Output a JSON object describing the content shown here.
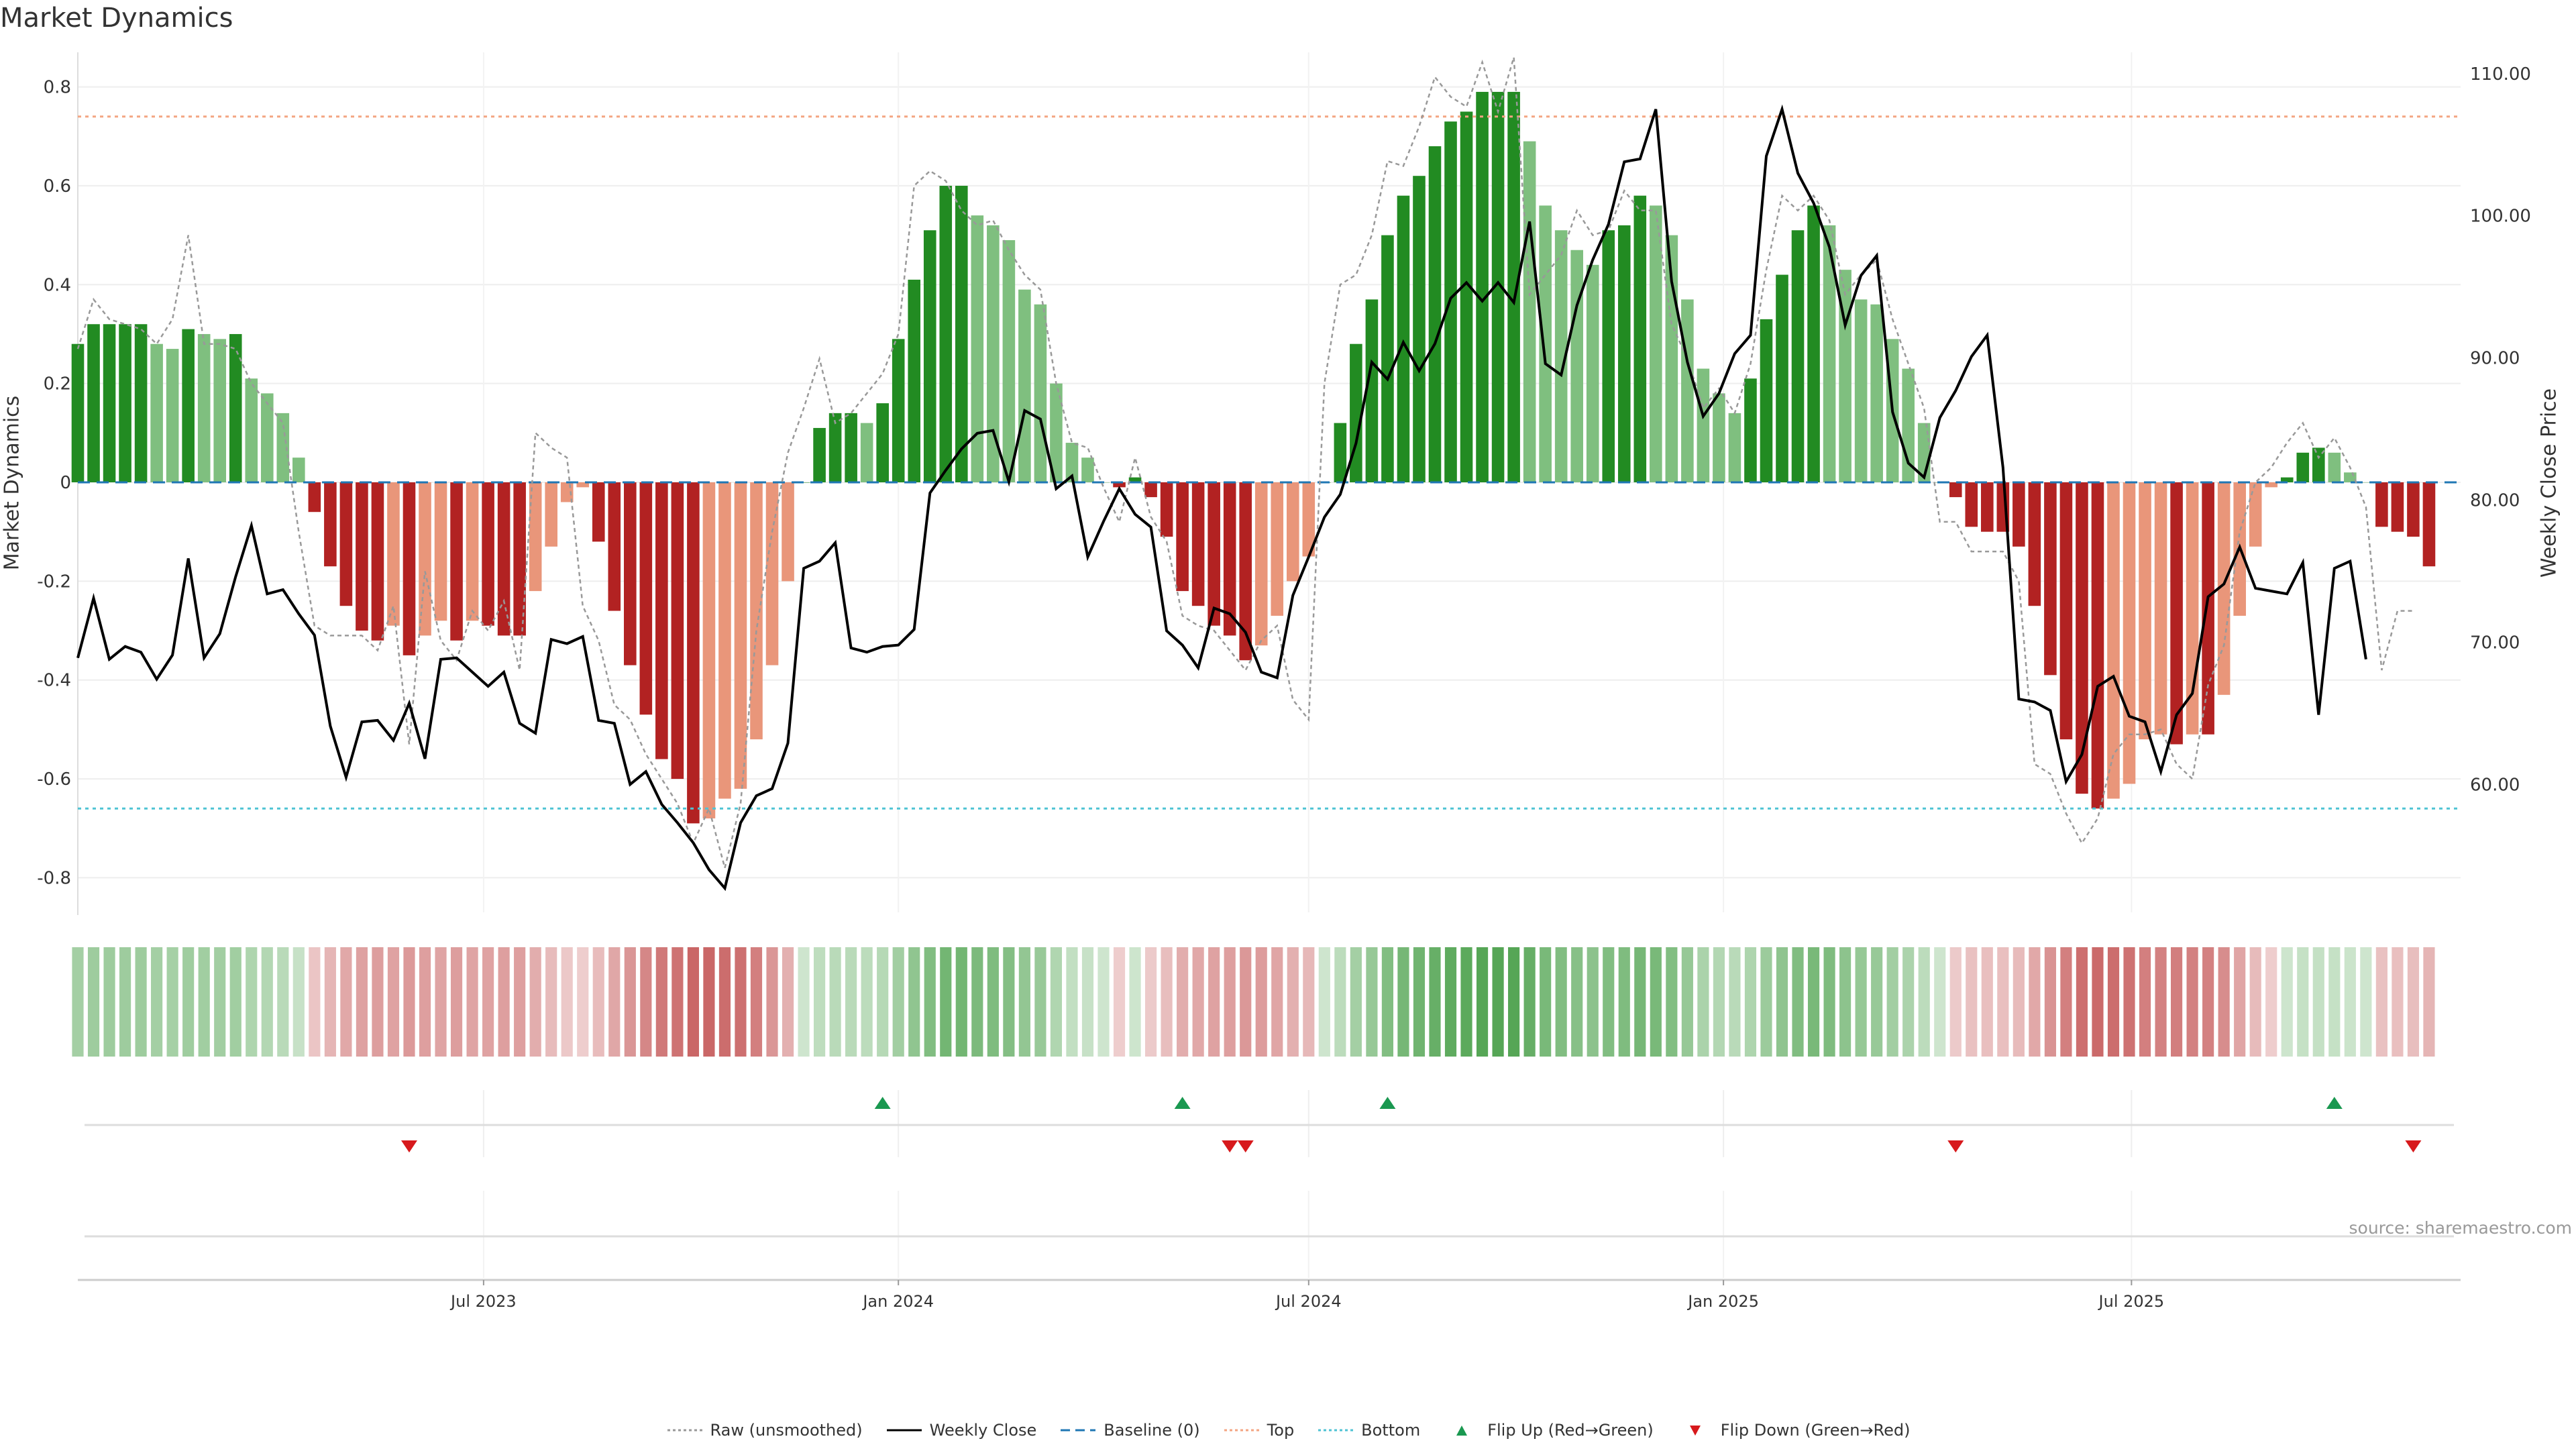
{
  "title": "Market Dynamics",
  "source": "source: sharemaestro.com",
  "colors": {
    "strong_green": "#228B22",
    "light_green": "#7FBF7F",
    "strong_red": "#B22222",
    "light_red": "#E9967A",
    "line": "#000000",
    "raw": "#999999",
    "baseline": "#1F77B4",
    "top": "#F4A582",
    "bottom": "#4FC3D4",
    "flip_up": "#1A9850",
    "flip_down": "#D7191C"
  },
  "chart_data": {
    "type": "bar",
    "title": "Market Dynamics",
    "ylabel_left": "Market Dynamics",
    "ylabel_right": "Weekly Close Price",
    "ylim_left": [
      -0.87,
      0.87
    ],
    "ylim_right": [
      51.0,
      111.5
    ],
    "yticks_left": [
      "0.8",
      "0.6",
      "0.4",
      "0.2",
      "0",
      "-0.2",
      "-0.4",
      "-0.6",
      "-0.8"
    ],
    "yticks_left_values": [
      0.8,
      0.6,
      0.4,
      0.2,
      0,
      -0.2,
      -0.4,
      -0.6,
      -0.8
    ],
    "yticks_right": [
      "110.00",
      "100.00",
      "90.00",
      "80.00",
      "70.00",
      "60.00"
    ],
    "yticks_right_values": [
      110,
      100,
      90,
      80,
      70,
      60
    ],
    "x_range": [
      "2023-01-02",
      "2025-11-24"
    ],
    "xticks": [
      "Jul 2023",
      "Jan 2024",
      "Jul 2024",
      "Jan 2025",
      "Jul 2025"
    ],
    "xtick_dates": [
      "2023-07-01",
      "2024-01-01",
      "2024-07-01",
      "2025-01-01",
      "2025-07-01"
    ],
    "top_level": 0.74,
    "bottom_level": -0.66,
    "grid": true,
    "legend_position": "bottom-center",
    "series": [
      {
        "name": "Market Dynamics",
        "kind": "bar",
        "values": [
          0.28,
          0.32,
          0.32,
          0.32,
          0.32,
          0.28,
          0.27,
          0.31,
          0.3,
          0.29,
          0.3,
          0.21,
          0.18,
          0.14,
          0.05,
          -0.06,
          -0.17,
          -0.25,
          -0.3,
          -0.32,
          -0.29,
          -0.35,
          -0.31,
          -0.28,
          -0.32,
          -0.28,
          -0.29,
          -0.31,
          -0.31,
          -0.22,
          -0.13,
          -0.04,
          -0.01,
          -0.12,
          -0.26,
          -0.37,
          -0.47,
          -0.56,
          -0.6,
          -0.69,
          -0.68,
          -0.64,
          -0.62,
          -0.52,
          -0.37,
          -0.2,
          0.0,
          0.11,
          0.14,
          0.14,
          0.12,
          0.16,
          0.29,
          0.41,
          0.51,
          0.6,
          0.6,
          0.54,
          0.52,
          0.49,
          0.39,
          0.36,
          0.2,
          0.08,
          0.05,
          0.0,
          -0.01,
          0.01,
          -0.03,
          -0.11,
          -0.22,
          -0.25,
          -0.29,
          -0.31,
          -0.36,
          -0.33,
          -0.27,
          -0.2,
          -0.15,
          0.0,
          0.12,
          0.28,
          0.37,
          0.5,
          0.58,
          0.62,
          0.68,
          0.73,
          0.75,
          0.79,
          0.79,
          0.79,
          0.69,
          0.56,
          0.51,
          0.47,
          0.44,
          0.51,
          0.52,
          0.58,
          0.56,
          0.5,
          0.37,
          0.23,
          0.18,
          0.14,
          0.21,
          0.33,
          0.42,
          0.51,
          0.56,
          0.52,
          0.43,
          0.37,
          0.36,
          0.29,
          0.23,
          0.12,
          0.0,
          -0.03,
          -0.09,
          -0.1,
          -0.1,
          -0.13,
          -0.25,
          -0.39,
          -0.52,
          -0.63,
          -0.66,
          -0.64,
          -0.61,
          -0.52,
          -0.51,
          -0.53,
          -0.51,
          -0.51,
          -0.43,
          -0.27,
          -0.13,
          -0.01,
          0.01,
          0.06,
          0.07,
          0.06,
          0.02,
          0.0,
          -0.09,
          -0.1,
          -0.11,
          -0.17
        ]
      },
      {
        "name": "Raw (unsmoothed)",
        "kind": "line-dotted",
        "values": [
          0.27,
          0.37,
          0.33,
          0.32,
          0.31,
          0.28,
          0.33,
          0.5,
          0.28,
          0.28,
          0.27,
          0.2,
          0.16,
          0.12,
          -0.1,
          -0.29,
          -0.31,
          -0.31,
          -0.31,
          -0.34,
          -0.25,
          -0.53,
          -0.18,
          -0.32,
          -0.36,
          -0.26,
          -0.3,
          -0.24,
          -0.38,
          0.1,
          0.07,
          0.05,
          -0.25,
          -0.32,
          -0.45,
          -0.48,
          -0.55,
          -0.6,
          -0.65,
          -0.73,
          -0.66,
          -0.78,
          -0.65,
          -0.3,
          -0.1,
          0.06,
          0.15,
          0.25,
          0.12,
          0.14,
          0.18,
          0.22,
          0.3,
          0.6,
          0.63,
          0.61,
          0.55,
          0.52,
          0.53,
          0.47,
          0.42,
          0.39,
          0.2,
          0.08,
          0.07,
          -0.01,
          -0.08,
          0.05,
          -0.07,
          -0.12,
          -0.27,
          -0.29,
          -0.3,
          -0.34,
          -0.38,
          -0.32,
          -0.29,
          -0.44,
          -0.48,
          0.2,
          0.4,
          0.42,
          0.5,
          0.65,
          0.64,
          0.72,
          0.82,
          0.78,
          0.76,
          0.85,
          0.75,
          0.86,
          0.38,
          0.42,
          0.46,
          0.55,
          0.5,
          0.51,
          0.59,
          0.55,
          0.55,
          0.32,
          0.25,
          0.15,
          0.19,
          0.14,
          0.24,
          0.43,
          0.58,
          0.55,
          0.58,
          0.53,
          0.38,
          0.42,
          0.45,
          0.33,
          0.24,
          0.15,
          -0.08,
          -0.08,
          -0.14,
          -0.14,
          -0.14,
          -0.2,
          -0.57,
          -0.59,
          -0.67,
          -0.73,
          -0.68,
          -0.55,
          -0.51,
          -0.51,
          -0.5,
          -0.57,
          -0.6,
          -0.41,
          -0.33,
          -0.1,
          0.0,
          0.03,
          0.08,
          0.12,
          0.05,
          0.09,
          0.03,
          -0.05,
          -0.38,
          -0.26,
          -0.26
        ]
      },
      {
        "name": "Weekly Close",
        "kind": "line",
        "axis": "right",
        "values": [
          68.9,
          73.1,
          68.8,
          69.7,
          69.3,
          67.4,
          69.1,
          75.9,
          68.9,
          70.6,
          74.6,
          78.2,
          73.4,
          73.7,
          72.0,
          70.5,
          64.1,
          60.5,
          64.4,
          64.5,
          63.1,
          65.7,
          61.8,
          68.8,
          68.9,
          67.9,
          66.9,
          67.9,
          64.3,
          63.6,
          70.2,
          69.9,
          70.4,
          64.5,
          64.3,
          60.0,
          60.9,
          58.6,
          57.3,
          55.9,
          54.0,
          52.7,
          57.3,
          59.2,
          59.7,
          62.9,
          75.2,
          75.7,
          77.0,
          69.6,
          69.3,
          69.7,
          69.8,
          70.9,
          80.5,
          82.1,
          83.6,
          84.7,
          84.9,
          81.3,
          86.3,
          85.7,
          80.8,
          81.7,
          76.0,
          78.5,
          80.8,
          79.0,
          78.1,
          70.8,
          69.8,
          68.2,
          72.4,
          72.0,
          70.7,
          67.9,
          67.5,
          73.3,
          76.0,
          78.8,
          80.4,
          84.0,
          89.7,
          88.5,
          91.1,
          89.1,
          91.0,
          94.2,
          95.3,
          94.0,
          95.3,
          93.9,
          99.6,
          89.6,
          88.8,
          93.7,
          96.9,
          99.4,
          103.8,
          104.0,
          107.5,
          95.4,
          89.7,
          85.9,
          87.5,
          90.3,
          91.6,
          104.2,
          107.5,
          103.0,
          100.9,
          97.8,
          92.3,
          95.8,
          97.2,
          86.2,
          82.6,
          81.6,
          85.8,
          87.7,
          90.1,
          91.6,
          82.3,
          66.0,
          65.8,
          65.2,
          60.2,
          62.1,
          66.9,
          67.6,
          64.8,
          64.4,
          60.9,
          64.9,
          66.4,
          73.2,
          74.1,
          76.7,
          73.8,
          73.6,
          73.4,
          75.6,
          64.9,
          75.2,
          75.7,
          68.8
        ]
      }
    ],
    "regime_strip": {
      "name": "Regime",
      "colors": [
        "#b5deb5",
        "#f1d2d2",
        "#b9e2bc",
        "#efd3d3",
        "#a8dcaf",
        "#f2c9c9",
        "#c7eac9",
        "#f1d0d0"
      ],
      "note_source": "derived"
    },
    "flip_up_dates": [
      "2023-12-25",
      "2024-05-06",
      "2024-08-05",
      "2025-09-29"
    ],
    "flip_down_dates": [
      "2023-05-29",
      "2024-05-27",
      "2024-06-03",
      "2025-04-14",
      "2025-11-03"
    ],
    "legend": [
      {
        "label": "Raw (unsmoothed)",
        "style": "dotted-line",
        "color": "#999999"
      },
      {
        "label": "Weekly Close",
        "style": "line",
        "color": "#000000"
      },
      {
        "label": "Baseline (0)",
        "style": "dashed-line",
        "color": "#1F77B4"
      },
      {
        "label": "Top",
        "style": "dotted-line",
        "color": "#F4A582"
      },
      {
        "label": "Bottom",
        "style": "dotted-line",
        "color": "#4FC3D4"
      },
      {
        "label": "Flip Up (Red→Green)",
        "style": "triangle-up",
        "color": "#1A9850"
      },
      {
        "label": "Flip Down (Green→Red)",
        "style": "triangle-down",
        "color": "#D7191C"
      }
    ]
  }
}
